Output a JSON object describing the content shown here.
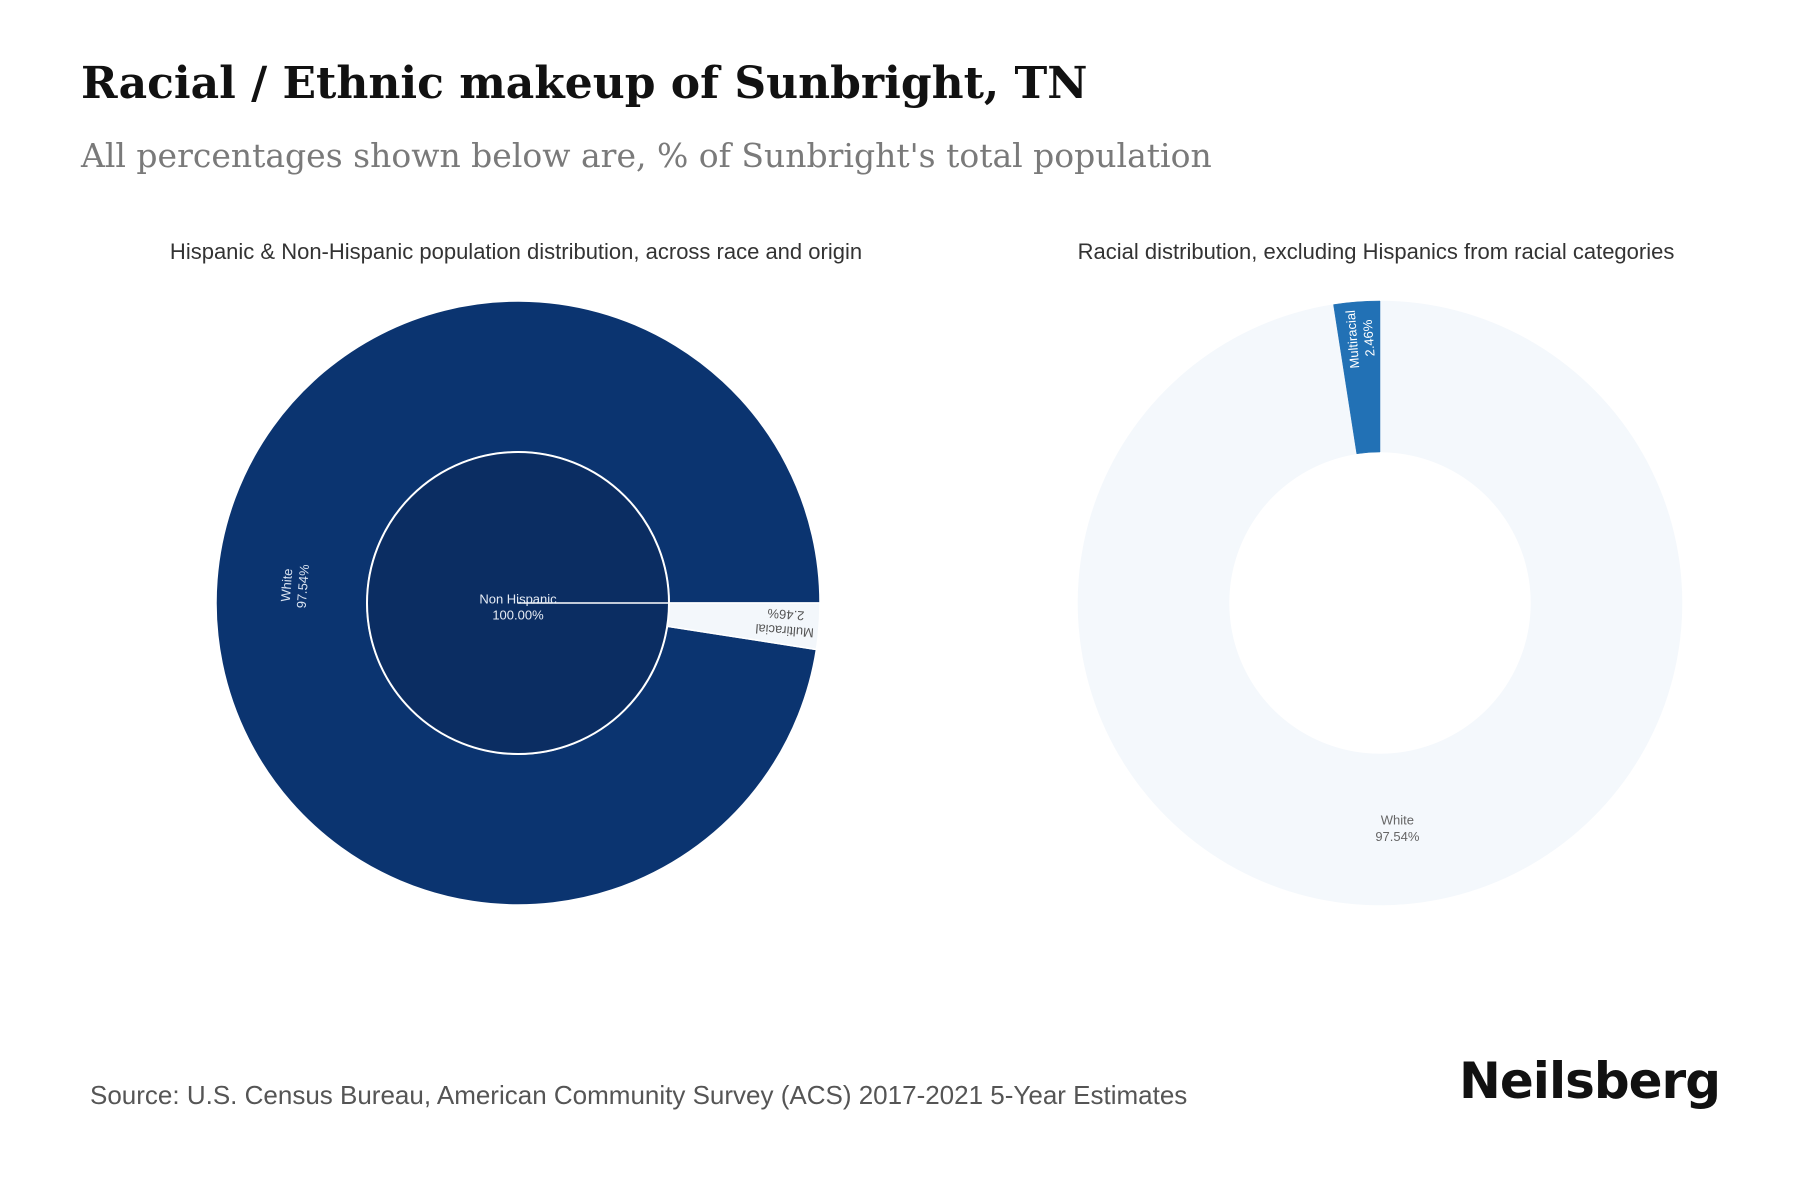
{
  "title": "Racial / Ethnic makeup of Sunbright, TN",
  "subtitle": "All percentages shown below are, % of Sunbright's total population",
  "source": "Source: U.S. Census Bureau, American Community Survey (ACS) 2017-2021 5-Year Estimates",
  "brand": "Neilsberg",
  "chart_data": [
    {
      "type": "pie",
      "title": "Hispanic & Non-Hispanic population distribution, across race and origin",
      "inner": [
        {
          "label": "Non Hispanic",
          "value": 100.0,
          "display": "100.00%",
          "color": "#0b2d62"
        }
      ],
      "outer": [
        {
          "label": "White",
          "value": 97.54,
          "display": "97.54%",
          "color": "#0b3470"
        },
        {
          "label": "Multiracial",
          "value": 2.46,
          "display": "2.46%",
          "color": "#f3f7fb"
        }
      ]
    },
    {
      "type": "pie",
      "title": "Racial distribution, excluding Hispanics from racial categories",
      "slices": [
        {
          "label": "White",
          "value": 97.54,
          "display": "97.54%",
          "color": "#f4f8fc"
        },
        {
          "label": "Multiracial",
          "value": 2.46,
          "display": "2.46%",
          "color": "#2271b5"
        }
      ]
    }
  ]
}
